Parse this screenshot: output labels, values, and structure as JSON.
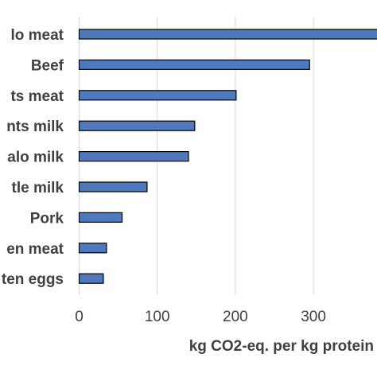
{
  "chart_data": {
    "type": "bar",
    "orientation": "horizontal",
    "categories": [
      "Buffalo meat",
      "Beef",
      "Small ruminants meat",
      "Small ruminants milk",
      "Buffalo milk",
      "Cattle milk",
      "Pork",
      "Chicken meat",
      "Chicken eggs"
    ],
    "visible_category_labels": [
      "lo meat",
      "Beef",
      "ts meat",
      "nts milk",
      "alo milk",
      "tle milk",
      "Pork",
      "en meat",
      "ten eggs"
    ],
    "values": [
      395,
      295,
      201,
      148,
      140,
      87,
      55,
      35,
      31
    ],
    "title": "",
    "xlabel": "kg CO2-eq. per kg protein",
    "ylabel": "",
    "xlim": [
      0,
      400
    ],
    "xticks": [
      0,
      100,
      200,
      300
    ],
    "xtick_labels": [
      "0",
      "100",
      "200",
      "300"
    ],
    "grid": "vertical",
    "colors": {
      "bar_fill": "#4e79bd",
      "bar_stroke": "#000000",
      "grid": "#d9d9d9",
      "text": "#404040"
    }
  }
}
